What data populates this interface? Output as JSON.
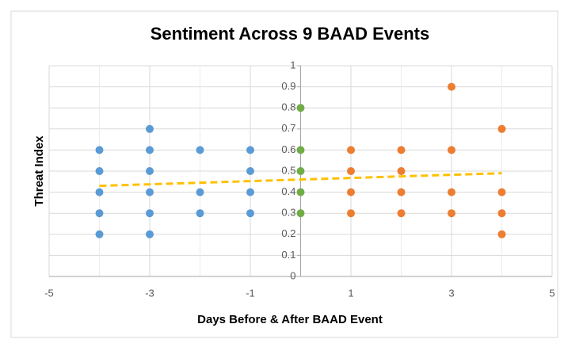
{
  "chart_data": {
    "type": "scatter",
    "title": "Sentiment Across 9 BAAD Events",
    "x_label": "Days Before & After BAAD Event",
    "y_label": "Threat Index",
    "xlim": [
      -5,
      5
    ],
    "xticks": [
      -5,
      -3,
      -1,
      1,
      3,
      5
    ],
    "xminorticks": [
      -4,
      -2,
      0,
      2,
      4
    ],
    "ylim": [
      0,
      1
    ],
    "yticks": [
      0,
      0.1,
      0.2,
      0.3,
      0.4,
      0.5,
      0.6,
      0.7,
      0.8,
      0.9,
      1
    ],
    "grid": true,
    "series": [
      {
        "color": "#5b9bd5",
        "x": [
          -4,
          -4,
          -4,
          -4,
          -4,
          -3,
          -3,
          -3,
          -3,
          -3,
          -3,
          -2,
          -2,
          -2,
          -1,
          -1,
          -1,
          -1
        ],
        "values": [
          0.6,
          0.5,
          0.4,
          0.3,
          0.2,
          0.7,
          0.6,
          0.5,
          0.4,
          0.3,
          0.2,
          0.6,
          0.4,
          0.3,
          0.6,
          0.5,
          0.4,
          0.3
        ]
      },
      {
        "color": "#70ad47",
        "x": [
          0,
          0,
          0,
          0,
          0
        ],
        "values": [
          0.8,
          0.6,
          0.5,
          0.4,
          0.3
        ]
      },
      {
        "color": "#ed7d31",
        "x": [
          1,
          1,
          1,
          1,
          2,
          2,
          2,
          2,
          3,
          3,
          3,
          3,
          4,
          4,
          4,
          4
        ],
        "values": [
          0.6,
          0.5,
          0.4,
          0.3,
          0.6,
          0.5,
          0.4,
          0.3,
          0.9,
          0.6,
          0.4,
          0.3,
          0.7,
          0.4,
          0.3,
          0.2
        ]
      }
    ],
    "trendline": {
      "color": "#ffc000",
      "dashed": true,
      "x": [
        -4,
        4
      ],
      "values": [
        0.43,
        0.49
      ]
    }
  }
}
